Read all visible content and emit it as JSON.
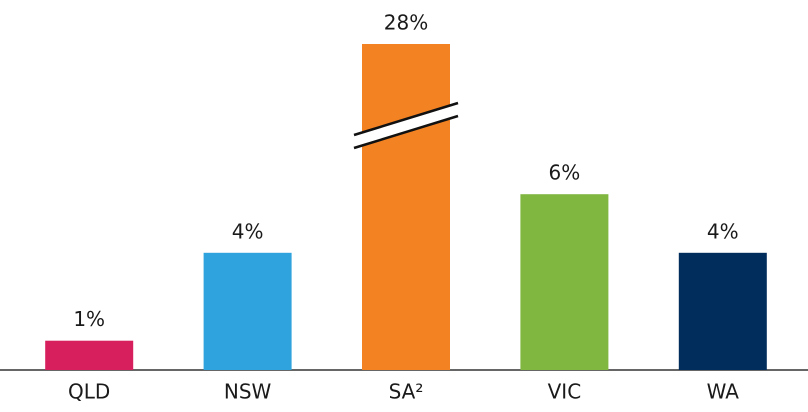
{
  "chart_data": {
    "type": "bar",
    "categories": [
      "QLD",
      "NSW",
      "SA²",
      "VIC",
      "WA"
    ],
    "values": [
      1,
      4,
      28,
      6,
      4
    ],
    "value_labels": [
      "1%",
      "4%",
      "28%",
      "6%",
      "4%"
    ],
    "colors": [
      "#d81f5e",
      "#2fa3dd",
      "#f28222",
      "#80b741",
      "#002d5c"
    ],
    "axis_break": true
  }
}
